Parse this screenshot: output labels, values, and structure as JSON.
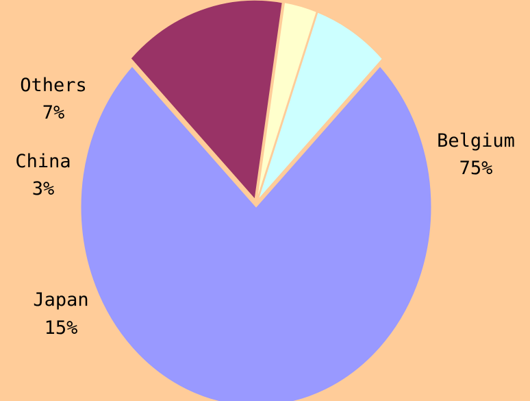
{
  "chart_data": {
    "type": "pie",
    "slices": [
      {
        "label": "Belgium",
        "value": 75,
        "value_label": "75%",
        "color": "#9999FF"
      },
      {
        "label": "Japan",
        "value": 15,
        "value_label": "15%",
        "color": "#993366"
      },
      {
        "label": "China",
        "value": 3,
        "value_label": "3%",
        "color": "#FFFFCC"
      },
      {
        "label": "Others",
        "value": 7,
        "value_label": "7%",
        "color": "#CCFFFF"
      }
    ],
    "exploded": true,
    "start_angle_deg": 45,
    "direction": "clockwise",
    "background": "#FFCC99",
    "legend": "none"
  }
}
